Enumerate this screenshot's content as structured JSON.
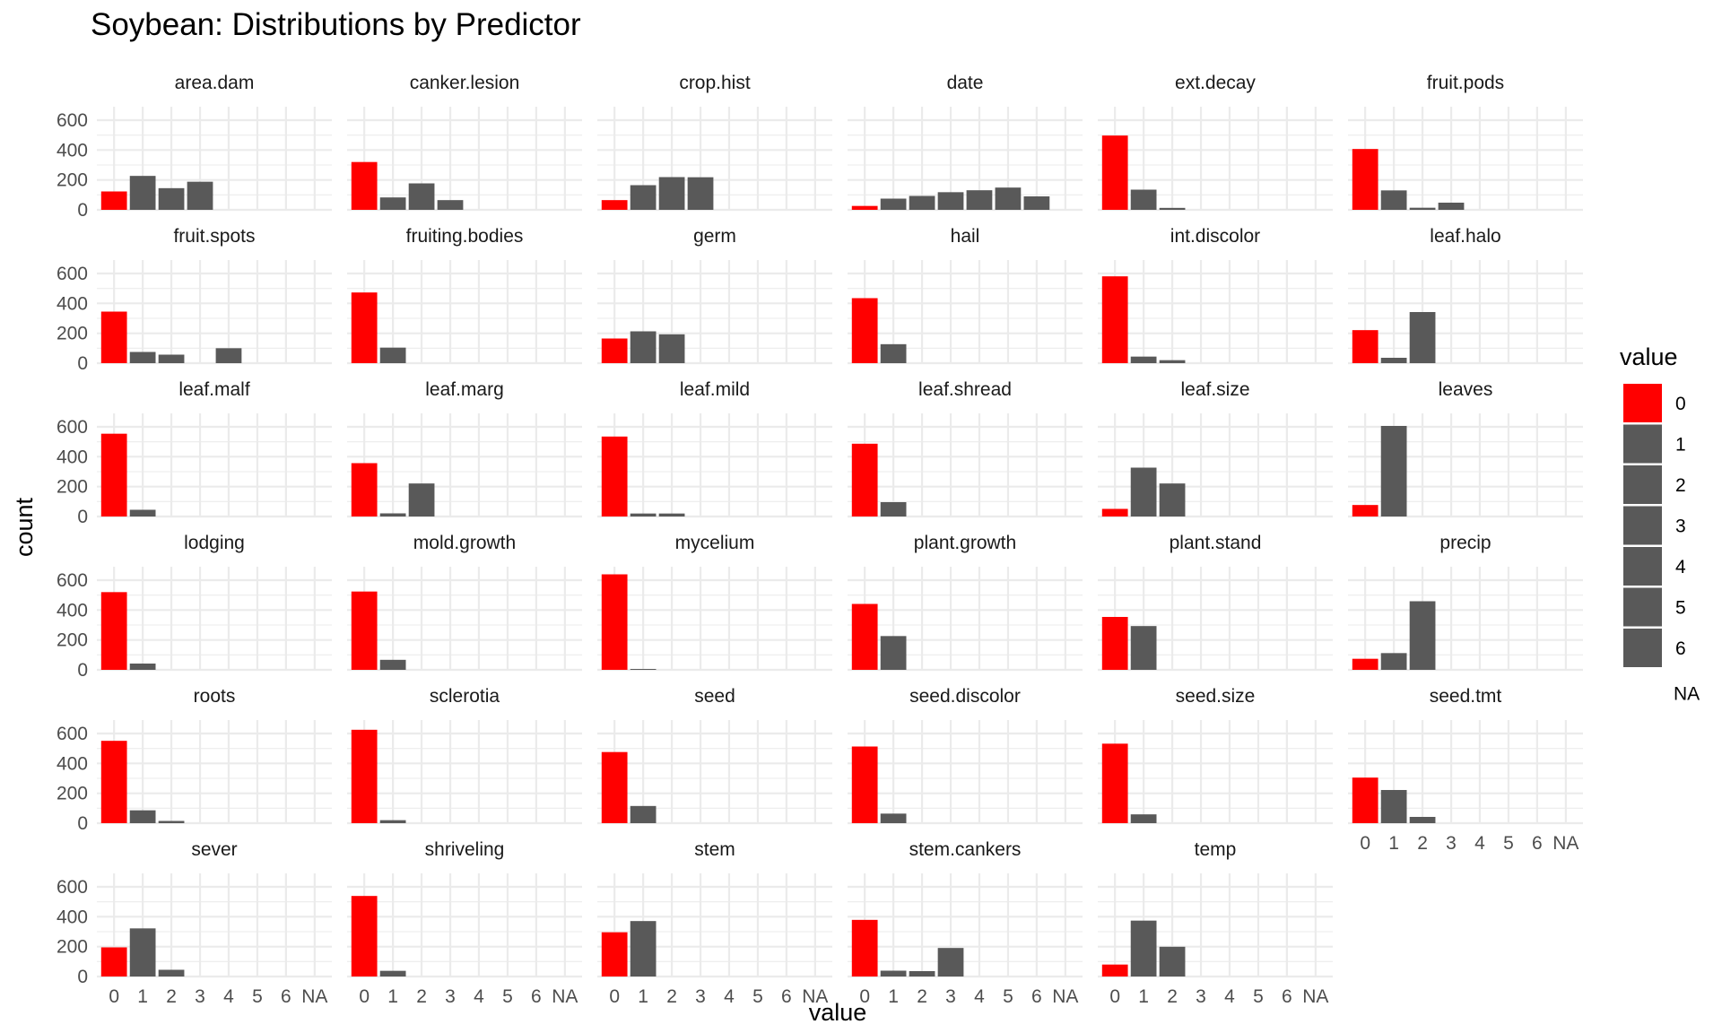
{
  "chart_data": {
    "type": "bar",
    "title": "Soybean: Distributions by Predictor",
    "xlabel": "value",
    "ylabel": "count",
    "categories": [
      "0",
      "1",
      "2",
      "3",
      "4",
      "5",
      "6",
      "NA"
    ],
    "y_ticks": [
      0,
      200,
      400,
      600
    ],
    "ylim": [
      0,
      690
    ],
    "grid": true,
    "legend": {
      "title": "value",
      "position": "right",
      "entries": [
        "0",
        "1",
        "2",
        "3",
        "4",
        "5",
        "6",
        "NA"
      ]
    },
    "colors": {
      "zero": "#ff0000",
      "other": "#595959",
      "grid": "#ebebeb"
    },
    "panels": [
      {
        "name": "area.dam",
        "values": [
          123,
          227,
          145,
          188,
          0,
          0,
          0,
          0
        ]
      },
      {
        "name": "canker.lesion",
        "values": [
          320,
          83,
          177,
          65,
          0,
          0,
          0,
          0
        ]
      },
      {
        "name": "crop.hist",
        "values": [
          65,
          165,
          219,
          218,
          0,
          0,
          0,
          0
        ]
      },
      {
        "name": "date",
        "values": [
          26,
          75,
          93,
          118,
          131,
          149,
          90,
          0
        ]
      },
      {
        "name": "ext.decay",
        "values": [
          497,
          135,
          13,
          0,
          0,
          0,
          0,
          0
        ]
      },
      {
        "name": "fruit.pods",
        "values": [
          407,
          130,
          14,
          48,
          0,
          0,
          0,
          0
        ]
      },
      {
        "name": "fruit.spots",
        "values": [
          345,
          75,
          57,
          0,
          100,
          0,
          0,
          0
        ]
      },
      {
        "name": "fruiting.bodies",
        "values": [
          473,
          104,
          0,
          0,
          0,
          0,
          0,
          0
        ]
      },
      {
        "name": "germ",
        "values": [
          165,
          213,
          193,
          0,
          0,
          0,
          0,
          0
        ]
      },
      {
        "name": "hail",
        "values": [
          435,
          127,
          0,
          0,
          0,
          0,
          0,
          0
        ]
      },
      {
        "name": "int.discolor",
        "values": [
          581,
          44,
          20,
          0,
          0,
          0,
          0,
          0
        ]
      },
      {
        "name": "leaf.halo",
        "values": [
          221,
          36,
          342,
          0,
          0,
          0,
          0,
          0
        ]
      },
      {
        "name": "leaf.malf",
        "values": [
          554,
          45,
          0,
          0,
          0,
          0,
          0,
          0
        ]
      },
      {
        "name": "leaf.marg",
        "values": [
          357,
          21,
          221,
          0,
          0,
          0,
          0,
          0
        ]
      },
      {
        "name": "leaf.mild",
        "values": [
          535,
          20,
          20,
          0,
          0,
          0,
          0,
          0
        ]
      },
      {
        "name": "leaf.shread",
        "values": [
          487,
          96,
          0,
          0,
          0,
          0,
          0,
          0
        ]
      },
      {
        "name": "leaf.size",
        "values": [
          51,
          327,
          221,
          0,
          0,
          0,
          0,
          0
        ]
      },
      {
        "name": "leaves",
        "values": [
          77,
          606,
          0,
          0,
          0,
          0,
          0,
          0
        ]
      },
      {
        "name": "lodging",
        "values": [
          520,
          42,
          0,
          0,
          0,
          0,
          0,
          0
        ]
      },
      {
        "name": "mold.growth",
        "values": [
          524,
          67,
          0,
          0,
          0,
          0,
          0,
          0
        ]
      },
      {
        "name": "mycelium",
        "values": [
          639,
          6,
          0,
          0,
          0,
          0,
          0,
          0
        ]
      },
      {
        "name": "plant.growth",
        "values": [
          441,
          226,
          0,
          0,
          0,
          0,
          0,
          0
        ]
      },
      {
        "name": "plant.stand",
        "values": [
          354,
          293,
          0,
          0,
          0,
          0,
          0,
          0
        ]
      },
      {
        "name": "precip",
        "values": [
          74,
          112,
          459,
          0,
          0,
          0,
          0,
          0
        ]
      },
      {
        "name": "roots",
        "values": [
          551,
          86,
          15,
          0,
          0,
          0,
          0,
          0
        ]
      },
      {
        "name": "sclerotia",
        "values": [
          625,
          20,
          0,
          0,
          0,
          0,
          0,
          0
        ]
      },
      {
        "name": "seed",
        "values": [
          476,
          115,
          0,
          0,
          0,
          0,
          0,
          0
        ]
      },
      {
        "name": "seed.discolor",
        "values": [
          513,
          64,
          0,
          0,
          0,
          0,
          0,
          0
        ]
      },
      {
        "name": "seed.size",
        "values": [
          532,
          59,
          0,
          0,
          0,
          0,
          0,
          0
        ]
      },
      {
        "name": "seed.tmt",
        "values": [
          305,
          222,
          42,
          0,
          0,
          0,
          0,
          0
        ]
      },
      {
        "name": "sever",
        "values": [
          195,
          322,
          45,
          0,
          0,
          0,
          0,
          0
        ]
      },
      {
        "name": "shriveling",
        "values": [
          539,
          38,
          0,
          0,
          0,
          0,
          0,
          0
        ]
      },
      {
        "name": "stem",
        "values": [
          296,
          371,
          0,
          0,
          0,
          0,
          0,
          0
        ]
      },
      {
        "name": "stem.cankers",
        "values": [
          379,
          39,
          36,
          191,
          0,
          0,
          0,
          0
        ]
      },
      {
        "name": "temp",
        "values": [
          80,
          374,
          199,
          0,
          0,
          0,
          0,
          0
        ]
      }
    ]
  }
}
